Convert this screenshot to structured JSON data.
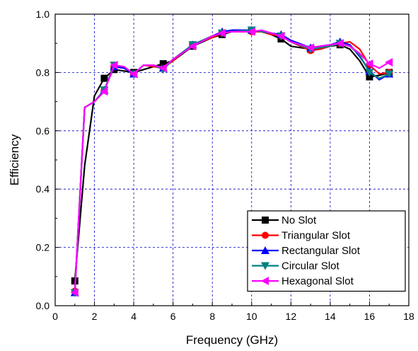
{
  "chart_data": {
    "type": "line",
    "xlabel": "Frequency (GHz)",
    "ylabel": "Efficiency",
    "xlim": [
      0,
      18
    ],
    "ylim": [
      0.0,
      1.0
    ],
    "x_ticks": [
      0,
      2,
      4,
      6,
      8,
      10,
      12,
      14,
      16,
      18
    ],
    "x_tick_labels": [
      "0",
      "2",
      "4",
      "6",
      "8",
      "10",
      "12",
      "14",
      "16",
      "18"
    ],
    "y_ticks": [
      0.0,
      0.2,
      0.4,
      0.6,
      0.8,
      1.0
    ],
    "y_tick_labels": [
      "0.0",
      "0.2",
      "0.4",
      "0.6",
      "0.8",
      "1.0"
    ],
    "grid": "dashed, blue, major ticks",
    "legend_position": "bottom-right",
    "series": [
      {
        "name": "No Slot",
        "color": "#000000",
        "marker": "square",
        "x": [
          1,
          1.5,
          2,
          2.5,
          3,
          3.5,
          4,
          4.5,
          5,
          5.5,
          6,
          7,
          8,
          8.5,
          9,
          10,
          10.5,
          11,
          11.5,
          12,
          13,
          13.5,
          14,
          14.5,
          15,
          15.5,
          16,
          16.5,
          17
        ],
        "values": [
          0.085,
          0.48,
          0.72,
          0.78,
          0.81,
          0.805,
          0.8,
          0.81,
          0.82,
          0.83,
          0.84,
          0.89,
          0.92,
          0.93,
          0.94,
          0.945,
          0.94,
          0.93,
          0.915,
          0.89,
          0.88,
          0.885,
          0.89,
          0.895,
          0.88,
          0.84,
          0.785,
          0.79,
          0.8
        ]
      },
      {
        "name": "Triangular Slot",
        "color": "#ff0000",
        "marker": "circle",
        "x": [
          1,
          1.5,
          2,
          2.5,
          3,
          3.5,
          4,
          4.5,
          5,
          5.5,
          6,
          7,
          8,
          8.5,
          9,
          10,
          10.5,
          11,
          11.5,
          12,
          13,
          13.5,
          14,
          14.5,
          15,
          15.5,
          16,
          16.5,
          17
        ],
        "values": [
          0.05,
          0.68,
          0.7,
          0.74,
          0.82,
          0.815,
          0.795,
          0.825,
          0.82,
          0.815,
          0.84,
          0.895,
          0.92,
          0.935,
          0.94,
          0.94,
          0.94,
          0.93,
          0.925,
          0.905,
          0.875,
          0.88,
          0.89,
          0.9,
          0.905,
          0.88,
          0.825,
          0.795,
          0.8
        ]
      },
      {
        "name": "Rectangular Slot",
        "color": "#0000ff",
        "marker": "triangle-up",
        "x": [
          1,
          1.5,
          2,
          2.5,
          3,
          3.5,
          4,
          4.5,
          5,
          5.5,
          6,
          7,
          8,
          8.5,
          9,
          10,
          10.5,
          11,
          11.5,
          12,
          13,
          13.5,
          14,
          14.5,
          15,
          15.5,
          16,
          16.5,
          17
        ],
        "values": [
          0.045,
          0.68,
          0.7,
          0.74,
          0.82,
          0.815,
          0.795,
          0.825,
          0.825,
          0.815,
          0.845,
          0.895,
          0.925,
          0.94,
          0.945,
          0.945,
          0.94,
          0.935,
          0.93,
          0.91,
          0.885,
          0.89,
          0.895,
          0.905,
          0.895,
          0.855,
          0.805,
          0.775,
          0.795
        ]
      },
      {
        "name": "Circular Slot",
        "color": "#008080",
        "marker": "triangle-down",
        "x": [
          1,
          1.5,
          2,
          2.5,
          3,
          3.5,
          4,
          4.5,
          5,
          5.5,
          6,
          7,
          8,
          8.5,
          9,
          10,
          10.5,
          11,
          11.5,
          12,
          13,
          13.5,
          14,
          14.5,
          15,
          15.5,
          16,
          16.5,
          17
        ],
        "values": [
          0.045,
          0.68,
          0.7,
          0.74,
          0.825,
          0.82,
          0.795,
          0.825,
          0.825,
          0.81,
          0.845,
          0.895,
          0.925,
          0.935,
          0.94,
          0.945,
          0.94,
          0.935,
          0.925,
          0.905,
          0.88,
          0.885,
          0.89,
          0.9,
          0.89,
          0.86,
          0.8,
          0.78,
          0.795
        ]
      },
      {
        "name": "Hexagonal Slot",
        "color": "#ff00ff",
        "marker": "triangle-left",
        "x": [
          1,
          1.5,
          2,
          2.5,
          3,
          3.5,
          4,
          4.5,
          5,
          5.5,
          6,
          7,
          8,
          8.5,
          9,
          10,
          10.5,
          11,
          11.5,
          12,
          13,
          13.5,
          14,
          14.5,
          15,
          15.5,
          16,
          16.5,
          17
        ],
        "values": [
          0.045,
          0.68,
          0.7,
          0.735,
          0.825,
          0.82,
          0.795,
          0.825,
          0.825,
          0.815,
          0.845,
          0.89,
          0.925,
          0.935,
          0.94,
          0.94,
          0.945,
          0.935,
          0.925,
          0.905,
          0.885,
          0.89,
          0.895,
          0.9,
          0.89,
          0.865,
          0.83,
          0.815,
          0.835
        ]
      }
    ]
  }
}
